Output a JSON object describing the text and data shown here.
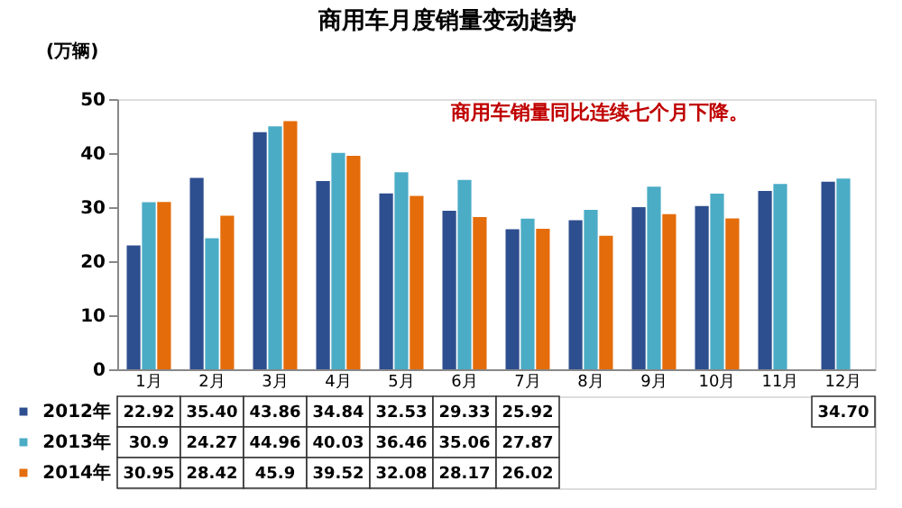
{
  "chart_data": {
    "type": "bar",
    "title": "商用车月度销量变动趋势",
    "ylabel": "(万辆)",
    "annotations": [
      "商用车销量同比连续七个月下降。"
    ],
    "categories": [
      "1月",
      "2月",
      "3月",
      "4月",
      "5月",
      "6月",
      "7月",
      "8月",
      "9月",
      "10月",
      "11月",
      "12月"
    ],
    "ylim": [
      0,
      50
    ],
    "yticks": [
      0,
      10,
      20,
      30,
      40,
      50
    ],
    "grid": false,
    "legend": "bottom left",
    "series": [
      {
        "name": "2012年",
        "color": "#2e4f8f",
        "values": [
          22.92,
          35.4,
          43.86,
          34.84,
          32.53,
          29.33,
          25.92,
          27.6,
          30,
          30.2,
          33,
          34.7
        ],
        "value_labels": [
          "22.92",
          "35.40",
          "43.86",
          "34.84",
          "32.53",
          "29.33",
          "25.92",
          null,
          null,
          null,
          null,
          "34.70"
        ]
      },
      {
        "name": "2013年",
        "color": "#4bacc6",
        "values": [
          30.9,
          24.27,
          44.96,
          40.03,
          36.46,
          35.06,
          27.87,
          29.5,
          33.8,
          32.5,
          34.3,
          35.3
        ],
        "value_labels": [
          "30.9",
          "24.27",
          "44.96",
          "40.03",
          "36.46",
          "35.06",
          "27.87",
          null,
          null,
          null,
          null,
          null
        ]
      },
      {
        "name": "2014年",
        "color": "#e46c0a",
        "values": [
          30.95,
          28.42,
          45.9,
          39.52,
          32.08,
          28.17,
          26.02,
          24.7,
          28.7,
          27.9,
          null,
          null
        ],
        "value_labels": [
          "30.95",
          "28.42",
          "45.9",
          "39.52",
          "32.08",
          "28.17",
          "26.02",
          null,
          null,
          null,
          null,
          null
        ]
      }
    ]
  }
}
